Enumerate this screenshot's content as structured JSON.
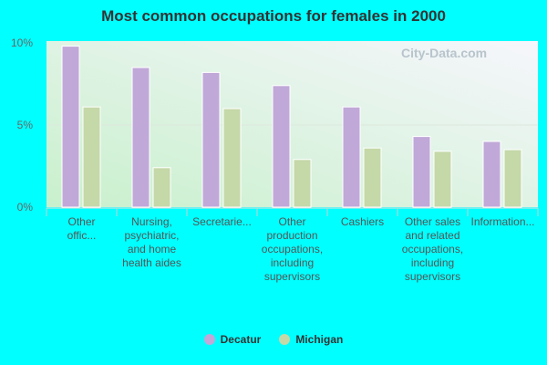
{
  "chart_data": {
    "type": "bar",
    "title": "Most common occupations for females in 2000",
    "categories": [
      "Other offic...",
      "Nursing, psychiatric, and home health aides",
      "Secretarie...",
      "Other production occupations, including supervisors",
      "Cashiers",
      "Other sales and related occupations, including supervisors",
      "Information..."
    ],
    "series": [
      {
        "name": "Decatur",
        "color": "#c0a8d8",
        "values": [
          9.8,
          8.5,
          8.2,
          7.4,
          6.1,
          4.3,
          4.0
        ]
      },
      {
        "name": "Michigan",
        "color": "#c4d8a8",
        "values": [
          6.1,
          2.4,
          6.0,
          2.9,
          3.6,
          3.4,
          3.5
        ]
      }
    ],
    "ylim": [
      0,
      10
    ],
    "yticks": [
      "0%",
      "5%",
      "10%"
    ],
    "grid": true,
    "legend": "bottom"
  },
  "watermark": "City-Data.com"
}
